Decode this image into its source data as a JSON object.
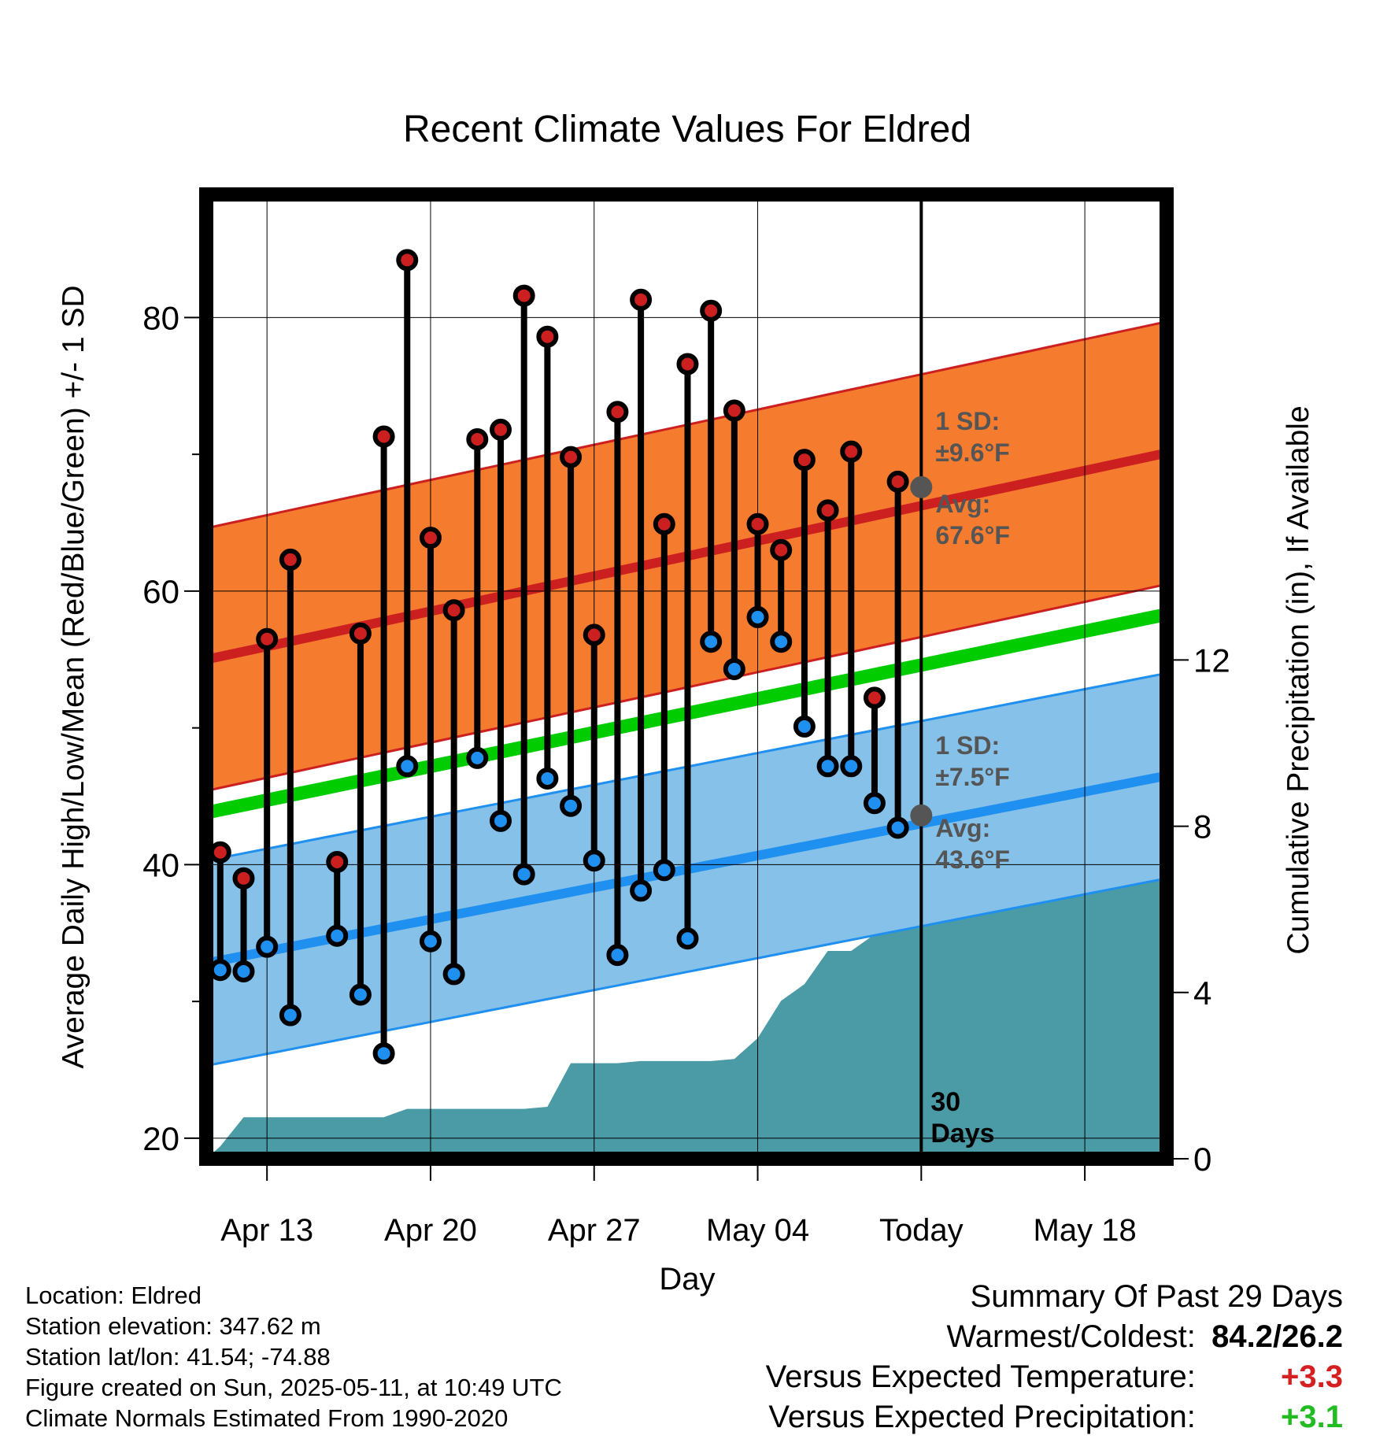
{
  "chart_data": {
    "type": "line",
    "title": "Recent Climate Values For Eldred",
    "xlabel": "Day",
    "ylabel": "Average Daily High/Low/Mean (Red/Blue/Green) +/- 1 SD",
    "y2label": "Cumulative Precipitation (in), If Available",
    "x_ticks": [
      "Apr 13",
      "Apr 20",
      "Apr 27",
      "May 04",
      "Today",
      "May 18"
    ],
    "y_ticks": [
      20,
      40,
      60,
      80
    ],
    "y2_ticks": [
      0,
      4,
      8,
      12
    ],
    "ylim": [
      18.5,
      89
    ],
    "y2lim": [
      0,
      23.2
    ],
    "x_range_days_from_apr10": [
      0.4,
      41.5
    ],
    "today_index": 31,
    "grid": true,
    "series": [
      {
        "name": "Daily High",
        "color": "#cc2020",
        "x": [
          1,
          2,
          3,
          4,
          6,
          7,
          8,
          9,
          10,
          11,
          12,
          13,
          14,
          15,
          16,
          17,
          18,
          19,
          20,
          21,
          22,
          23,
          24,
          25,
          26,
          27,
          28,
          29,
          30
        ],
        "values": [
          40.9,
          39.0,
          56.5,
          62.3,
          40.2,
          56.9,
          71.3,
          84.2,
          63.9,
          58.6,
          71.1,
          71.8,
          81.6,
          78.6,
          69.8,
          56.8,
          73.1,
          81.3,
          64.9,
          76.6,
          80.5,
          73.2,
          64.9,
          63.0,
          69.6,
          65.9,
          70.2,
          52.2,
          68.0
        ]
      },
      {
        "name": "Daily Low",
        "color": "#2090f0",
        "x": [
          1,
          2,
          3,
          4,
          6,
          7,
          8,
          9,
          10,
          11,
          12,
          13,
          14,
          15,
          16,
          17,
          18,
          19,
          20,
          21,
          22,
          23,
          24,
          25,
          26,
          27,
          28,
          29,
          30
        ],
        "values": [
          32.3,
          32.2,
          34.0,
          29.0,
          34.8,
          30.5,
          26.2,
          47.2,
          34.4,
          32.0,
          47.8,
          43.2,
          39.3,
          46.3,
          44.3,
          40.3,
          33.4,
          38.1,
          39.6,
          34.6,
          56.3,
          54.3,
          58.1,
          56.3,
          50.1,
          47.2,
          47.2,
          44.5,
          42.7
        ]
      },
      {
        "name": "Expected High",
        "color": "#cc2020",
        "x": [
          0.4,
          41.5
        ],
        "values": [
          55.0,
          70.1
        ],
        "band_sd": 9.6,
        "band_color": "#f57c2e"
      },
      {
        "name": "Expected Low",
        "color": "#2090f0",
        "x": [
          0.4,
          41.5
        ],
        "values": [
          32.8,
          46.5
        ],
        "band_sd": 7.5,
        "band_color": "#85c1e8"
      },
      {
        "name": "Expected Mean",
        "color": "#00cc00",
        "x": [
          0.4,
          41.5
        ],
        "values": [
          43.8,
          58.3
        ]
      },
      {
        "name": "Cumulative Precipitation",
        "color": "#4a9ba5",
        "axis": "y2",
        "x": [
          0.4,
          1,
          2,
          3,
          4,
          5,
          6,
          7,
          8,
          9,
          10,
          11,
          12,
          13,
          14,
          15,
          16,
          17,
          18,
          19,
          20,
          21,
          22,
          23,
          24,
          25,
          26,
          27,
          28,
          29,
          30,
          31,
          41.5
        ],
        "values": [
          0,
          0.3,
          1.0,
          1.0,
          1.0,
          1.0,
          1.0,
          1.0,
          1.0,
          1.2,
          1.2,
          1.2,
          1.2,
          1.2,
          1.2,
          1.25,
          2.3,
          2.3,
          2.3,
          2.35,
          2.35,
          2.35,
          2.35,
          2.4,
          2.9,
          3.8,
          4.2,
          5.0,
          5.0,
          5.4,
          7.0,
          7.0,
          7.0
        ]
      }
    ],
    "annotations": {
      "high_sd": "1 SD:",
      "high_sd_value": "±9.6°F",
      "high_avg": "Avg:",
      "high_avg_value": "67.6°F",
      "low_sd": "1 SD:",
      "low_sd_value": "±7.5°F",
      "low_avg": "Avg:",
      "low_avg_value": "43.6°F",
      "today_high": 67.6,
      "today_low": 43.6,
      "window_1": "30",
      "window_2": "Days"
    }
  },
  "footer": {
    "location": "Location: Eldred",
    "elevation": "Station elevation: 347.62 m",
    "latlon": "Station lat/lon: 41.54; -74.88",
    "created": "Figure created on Sun, 2025-05-11, at 10:49 UTC",
    "normals": "Climate Normals Estimated From 1990-2020"
  },
  "summary": {
    "title": "Summary Of Past 29 Days",
    "warmest_label": "Warmest/Coldest:",
    "warmest_value": "84.2/26.2",
    "temp_label": "Versus Expected Temperature:",
    "temp_value": "+3.3",
    "precip_label": "Versus Expected Precipitation:",
    "precip_value": "+3.1"
  }
}
